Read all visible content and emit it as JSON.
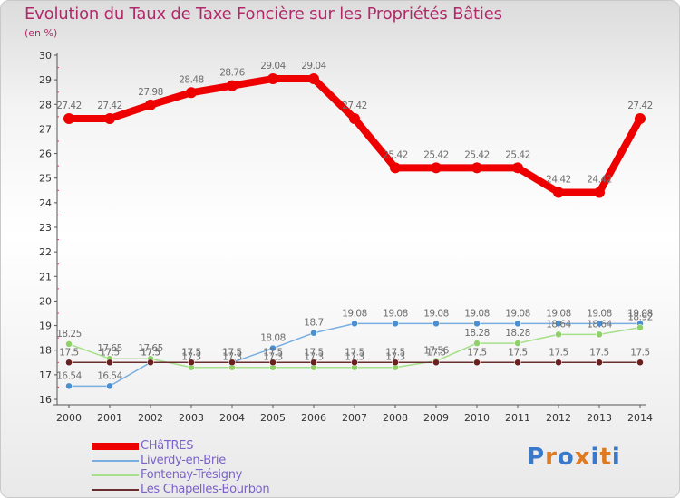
{
  "header": {
    "title": "Evolution du Taux de Taxe Foncière sur les Propriétés Bâties",
    "subtitle": "(en %)"
  },
  "colors": {
    "title": "#b02a6a",
    "axis": "#555555",
    "tick_mark": "#e04060",
    "point_label": "#6e6e6e",
    "legend_text": "#7a62c9"
  },
  "logo": {
    "text": "Proxiti",
    "letter_colors": [
      "#3a78c9",
      "#e07a20",
      "#3a78c9",
      "#e07a20",
      "#3a78c9",
      "#e07a20",
      "#3a78c9"
    ]
  },
  "chart_data": {
    "type": "line",
    "x": [
      2000,
      2001,
      2002,
      2003,
      2004,
      2005,
      2006,
      2007,
      2008,
      2009,
      2010,
      2011,
      2012,
      2013,
      2014
    ],
    "ylim": [
      16,
      30
    ],
    "yticks": [
      16,
      17,
      18,
      19,
      20,
      21,
      22,
      23,
      24,
      25,
      26,
      27,
      28,
      29,
      30
    ],
    "grid": false,
    "legend_position": "bottom-left",
    "series": [
      {
        "name": "CHâTRES",
        "color": "#ee0000",
        "marker_color": "#ee0000",
        "stroke_width": 8,
        "marker_radius": 6,
        "values": [
          27.42,
          27.42,
          27.98,
          28.48,
          28.76,
          29.04,
          29.04,
          27.42,
          25.42,
          25.42,
          25.42,
          25.42,
          24.42,
          24.42,
          27.42
        ],
        "labels": [
          "27.42",
          "27.42",
          "27.98",
          "28.48",
          "28.76",
          "29.04",
          "29.04",
          "27.42",
          "25.42",
          "25.42",
          "25.42",
          "25.42",
          "24.42",
          "24.42",
          "27.42"
        ]
      },
      {
        "name": "Liverdy-en-Brie",
        "color": "#78aee0",
        "marker_color": "#4a8fcf",
        "stroke_width": 1.5,
        "marker_radius": 3.5,
        "values": [
          16.54,
          16.54,
          17.5,
          17.5,
          17.5,
          18.08,
          18.7,
          19.08,
          19.08,
          19.08,
          19.08,
          19.08,
          19.08,
          19.08,
          19.08
        ],
        "labels": [
          "16.54",
          "16.54",
          "17.5",
          "17.5",
          "17.5",
          "18.08",
          "18.7",
          "19.08",
          "19.08",
          "19.08",
          "19.08",
          "19.08",
          "19.08",
          "19.08",
          "19.08"
        ]
      },
      {
        "name": "Fontenay-Trésigny",
        "color": "#a6e08a",
        "marker_color": "#8fd06a",
        "stroke_width": 1.5,
        "marker_radius": 3.5,
        "values": [
          18.25,
          17.65,
          17.65,
          17.3,
          17.3,
          17.3,
          17.3,
          17.3,
          17.3,
          17.56,
          18.28,
          18.28,
          18.64,
          18.64,
          18.92
        ],
        "labels": [
          "18.25",
          "17.65",
          "17.65",
          "17.3",
          "17.3",
          "17.3",
          "17.3",
          "17.3",
          "17.3",
          "17.56",
          "18.28",
          "18.28",
          "18.64",
          "18.64",
          "18.92"
        ]
      },
      {
        "name": "Les Chapelles-Bourbon",
        "color": "#6b2d2d",
        "marker_color": "#6b2020",
        "stroke_width": 1.5,
        "marker_radius": 3.5,
        "values": [
          17.5,
          17.5,
          17.5,
          17.5,
          17.5,
          17.5,
          17.5,
          17.5,
          17.5,
          17.5,
          17.5,
          17.5,
          17.5,
          17.5,
          17.5
        ],
        "labels": [
          "17.5",
          "17.5",
          "17.5",
          "17.5",
          "17.5",
          "17.5",
          "17.5",
          "17.5",
          "17.5",
          "17.5",
          "17.5",
          "17.5",
          "17.5",
          "17.5",
          "17.5"
        ]
      }
    ]
  }
}
